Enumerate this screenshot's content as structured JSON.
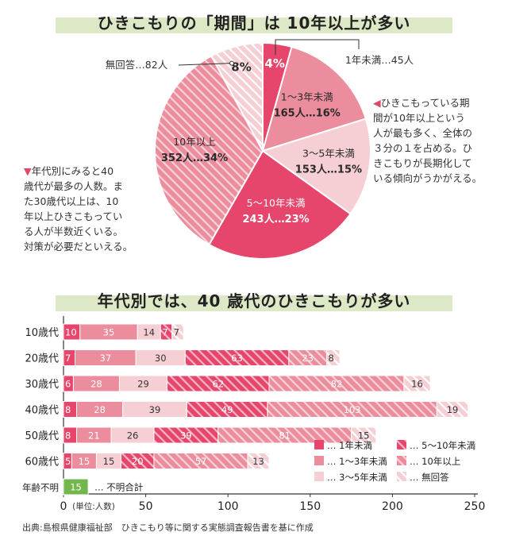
{
  "colors": {
    "c1": "#e6456c",
    "c2": "#eb8d9c",
    "c3": "#f6cfd4",
    "c4": "#e6456c",
    "c5": "#eb8d9c",
    "c6": "#f6cfd4",
    "c7": "#73b64c",
    "accent": "#e0466a",
    "band": "#dde8c6"
  },
  "chart_data": [
    {
      "type": "pie",
      "title": "ひきこもりの「期間」は 10年以上が多い",
      "slices": [
        {
          "name": "1年未満",
          "count": 45,
          "pct": 4,
          "label_top": "",
          "label_bottom": "4%",
          "callout": "1年未満…45人",
          "pattern": false
        },
        {
          "name": "1〜3年未満",
          "count": 165,
          "pct": 16,
          "label_top": "1〜3年未満",
          "label_bottom": "165人…16%",
          "pattern": false
        },
        {
          "name": "3〜5年未満",
          "count": 153,
          "pct": 15,
          "label_top": "3〜5年未満",
          "label_bottom": "153人…15%",
          "pattern": false
        },
        {
          "name": "5〜10年未満",
          "count": 243,
          "pct": 23,
          "label_top": "5〜10年未満",
          "label_bottom": "243人…23%",
          "pattern": false
        },
        {
          "name": "10年以上",
          "count": 352,
          "pct": 34,
          "label_top": "10年以上",
          "label_bottom": "352人…34%",
          "pattern": true
        },
        {
          "name": "無回答",
          "count": 82,
          "pct": 8,
          "label_top": "",
          "label_bottom": "8%",
          "callout": "無回答…82人",
          "pattern": true
        }
      ]
    },
    {
      "type": "bar",
      "orientation": "horizontal",
      "stacked": true,
      "title": "年代別では、40 歳代のひきこもりが多い",
      "categories": [
        "10歳代",
        "20歳代",
        "30歳代",
        "40歳代",
        "50歳代",
        "60歳代",
        "年齢不明"
      ],
      "series": [
        {
          "name": "1年未満",
          "values": [
            10,
            7,
            6,
            8,
            8,
            5,
            0
          ]
        },
        {
          "name": "1〜3年未満",
          "values": [
            35,
            37,
            28,
            28,
            21,
            15,
            0
          ]
        },
        {
          "name": "3〜5年未満",
          "values": [
            14,
            30,
            29,
            39,
            26,
            15,
            0
          ]
        },
        {
          "name": "5〜10年未満",
          "values": [
            7,
            63,
            62,
            49,
            39,
            20,
            0
          ]
        },
        {
          "name": "10年以上",
          "values": [
            0,
            23,
            82,
            103,
            81,
            57,
            0
          ]
        },
        {
          "name": "無回答",
          "values": [
            7,
            8,
            16,
            19,
            15,
            13,
            0
          ]
        },
        {
          "name": "不明合計",
          "values": [
            0,
            0,
            0,
            0,
            0,
            0,
            15
          ]
        }
      ],
      "xlabel": "(単位:人数)",
      "xlim": [
        0,
        250
      ],
      "xticks": [
        0,
        50,
        100,
        150,
        200,
        250
      ],
      "legend": [
        {
          "label": "… 1年未満",
          "series": 0
        },
        {
          "label": "… 1〜3年未満",
          "series": 1
        },
        {
          "label": "… 3〜5年未満",
          "series": 2
        },
        {
          "label": "… 5〜10年未満",
          "series": 3
        },
        {
          "label": "… 10年以上",
          "series": 4
        },
        {
          "label": "… 無回答",
          "series": 5
        }
      ],
      "unknown_label": "… 不明合計"
    }
  ],
  "notes": {
    "right": [
      "ひきこもっている期",
      "間が10年以上という",
      "人が最も多く、全体の",
      "３分の１を占める。ひ",
      "きこもりが長期化して",
      "いる傾向がうかがえる。"
    ],
    "left": [
      "年代別にみると40",
      "歳代が最多の人数。ま",
      "た30歳代以上は、10",
      "年以上ひきこもってい",
      "る人が半数近くいる。",
      "対策が必要だといえる。"
    ],
    "right_mark": "◀",
    "left_mark": "▼"
  },
  "source": "出典:島根県健康福祉部　ひきこもり等に関する実態調査報告書を基に作成"
}
